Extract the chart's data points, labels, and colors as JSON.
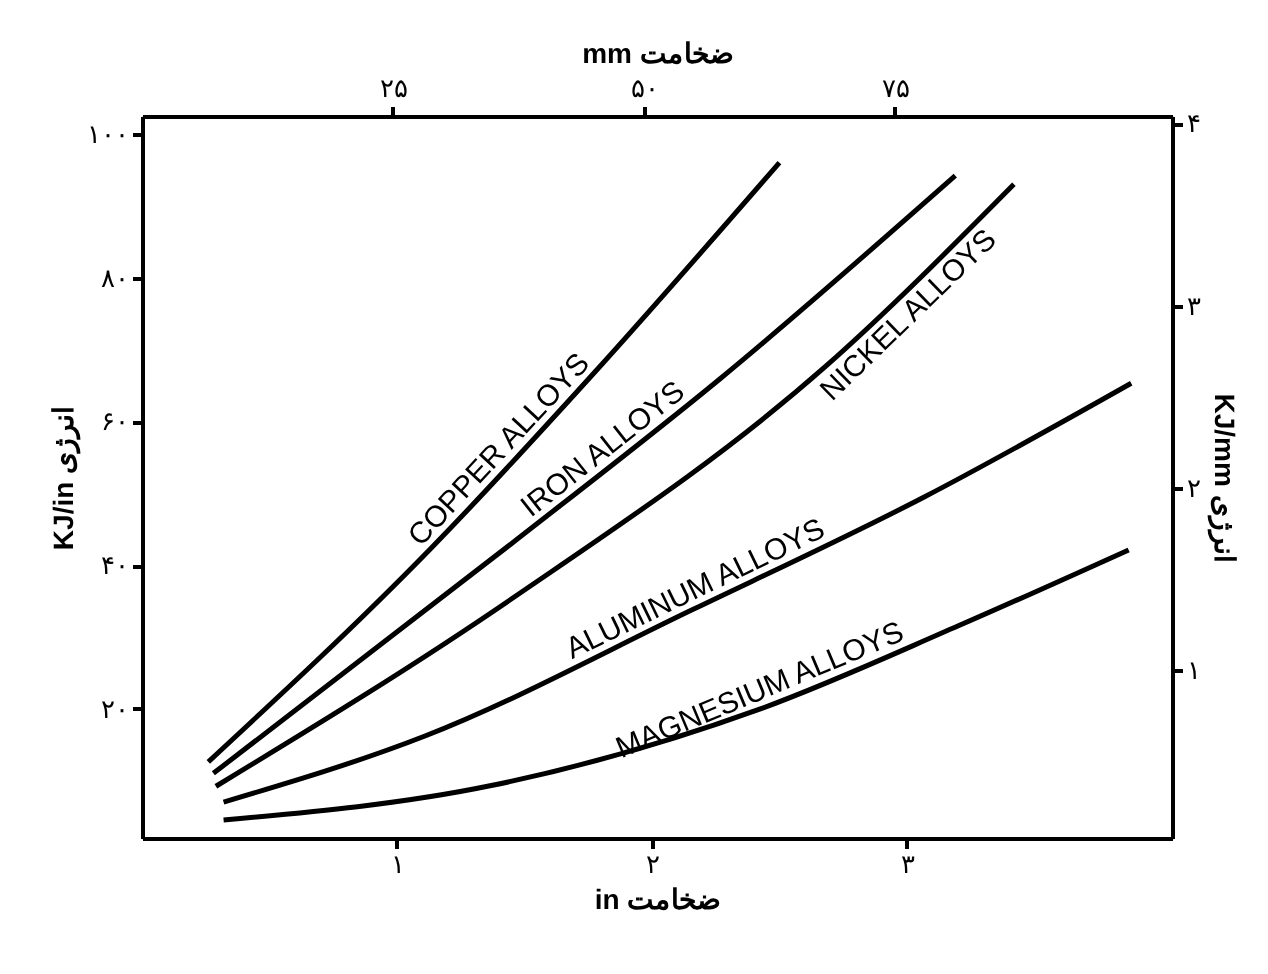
{
  "chart_data": {
    "type": "line",
    "xlabel": "ضخامت in",
    "x2label": "ضخامت mm",
    "ylabel": "انرژی KJ/in",
    "y2label": "انرژی KJ/mm",
    "xlim": [
      0,
      4.04
    ],
    "xticks": [
      {
        "value": 1,
        "label": "۱"
      },
      {
        "value": 2,
        "label": "۲"
      },
      {
        "value": 3,
        "label": "۳"
      }
    ],
    "x2lim": [
      0,
      102.6
    ],
    "x2ticks": [
      {
        "value": 25,
        "label": "۲۵"
      },
      {
        "value": 50,
        "label": "۵۰"
      },
      {
        "value": 75,
        "label": "۷۵"
      }
    ],
    "ylim": [
      2,
      102.5
    ],
    "yticks": [
      {
        "value": 20,
        "label": "۲۰"
      },
      {
        "value": 40,
        "label": "۴۰"
      },
      {
        "value": 60,
        "label": "۶۰"
      },
      {
        "value": 80,
        "label": "۸۰"
      },
      {
        "value": 100,
        "label": "۱۰۰"
      }
    ],
    "y2lim": [
      0.08,
      4.04
    ],
    "y2ticks": [
      {
        "value": 1,
        "label": "۱"
      },
      {
        "value": 2,
        "label": "۲"
      },
      {
        "value": 3,
        "label": "۳"
      },
      {
        "value": 4,
        "label": "۴"
      }
    ],
    "grid": false,
    "legend": false,
    "marker": "none",
    "line_style": "solid",
    "series": [
      {
        "name": "COPPER ALLOYS",
        "color": "#000000",
        "x": [
          0.26,
          1.13,
          1.78,
          2.5
        ],
        "values": [
          12.6,
          42.2,
          67,
          96
        ]
      },
      {
        "name": "IRON ALLOYS",
        "color": "#000000",
        "x": [
          0.28,
          1.45,
          2.27,
          3.19
        ],
        "values": [
          11,
          43,
          66,
          94.2
        ]
      },
      {
        "name": "NICKEL ALLOYS",
        "color": "#000000",
        "x": [
          0.29,
          1.45,
          2.68,
          3.42
        ],
        "values": [
          9.2,
          35.3,
          67.6,
          93
        ]
      },
      {
        "name": "ALUMINUM ALLOYS",
        "color": "#000000",
        "x": [
          0.32,
          1.11,
          2.16,
          3.07,
          3.88
        ],
        "values": [
          7,
          16.2,
          33.8,
          49.5,
          65.3
        ]
      },
      {
        "name": "MAGNESIUM ALLOYS",
        "color": "#000000",
        "x": [
          0.32,
          1.37,
          2.42,
          3.2,
          3.87
        ],
        "values": [
          4.5,
          9.3,
          19.9,
          31.5,
          42.1
        ]
      }
    ]
  }
}
